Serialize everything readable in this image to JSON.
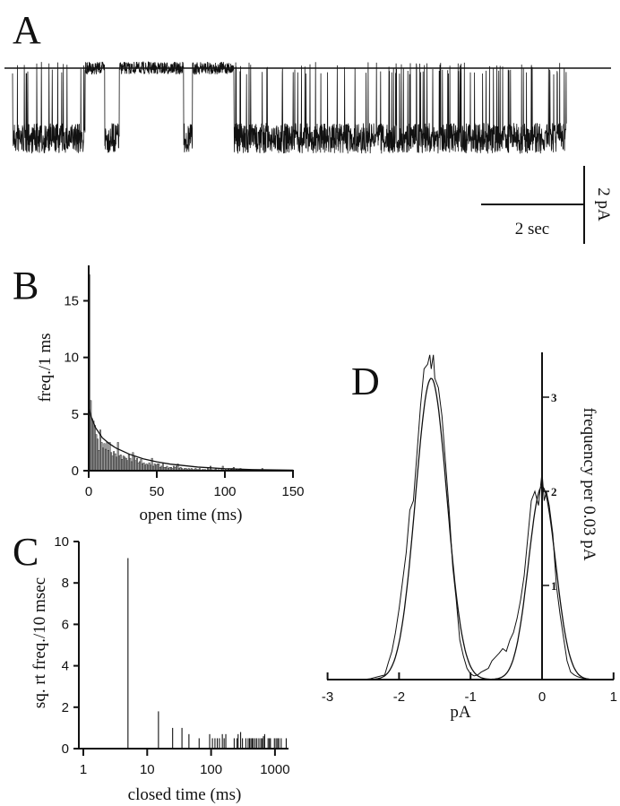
{
  "panels": {
    "a": "A",
    "b": "B",
    "c": "C",
    "d": "D"
  },
  "colors": {
    "ink": "#111111",
    "bar_fill": "#9a9a9a"
  },
  "chart_data": [
    {
      "id": "A",
      "type": "line",
      "description_kind": "single-channel current trace",
      "scale_bar": {
        "time_label": "2 sec",
        "current_label": "2 pA",
        "time_s": 2,
        "current_pA": 2
      },
      "closed_level_pA": 0,
      "open_level_pA": -1.8,
      "duration_s": 10.75,
      "long_closed_intervals_s": [
        [
          1.41,
          1.79
        ],
        [
          2.07,
          3.32
        ],
        [
          3.49,
          4.3
        ]
      ],
      "brief_open_intervals_s": [
        [
          1.79,
          2.07
        ],
        [
          3.32,
          3.49
        ]
      ]
    },
    {
      "id": "B",
      "type": "bar",
      "xlabel": "open time (ms)",
      "ylabel": "freq./1 ms",
      "xlim": [
        0,
        150
      ],
      "ylim": [
        0,
        17.5
      ],
      "xticks": [
        "0",
        "50",
        "100",
        "150"
      ],
      "yticks": [
        "0",
        "5",
        "10",
        "15"
      ],
      "bin_width_ms": 1,
      "values": [
        17.3,
        6.2,
        4.6,
        4.4,
        4.0,
        3.2,
        2.8,
        1.8,
        3.6,
        2.5,
        2.0,
        2.4,
        1.9,
        2.5,
        1.8,
        2.5,
        1.6,
        1.3,
        1.7,
        1.5,
        1.2,
        2.5,
        1.3,
        1.4,
        1.0,
        1.3,
        1.2,
        1.1,
        0.9,
        1.4,
        1.1,
        0.8,
        1.6,
        1.3,
        0.9,
        1.1,
        0.7,
        0.8,
        1.0,
        0.6,
        0.7,
        0.5,
        0.6,
        0.5,
        0.7,
        0.5,
        1.1,
        0.4,
        0.6,
        0.5,
        0.6,
        0.6,
        0.3,
        0.4,
        0.6,
        0.3,
        0.3,
        0.4,
        0.2,
        0.3,
        0.3,
        0.2,
        0.4,
        0.3,
        0.4,
        0.6,
        0.2,
        0.3,
        0.2,
        0.1,
        0.2,
        0.2,
        0.1,
        0.2,
        0.1,
        0.2,
        0.1,
        0.1,
        0.2,
        0.1,
        0.1,
        0.2,
        0,
        0.1,
        0.1,
        0.1,
        0,
        0.2,
        0.1,
        0.4,
        0.1,
        0,
        0.1,
        0.2,
        0,
        0.1,
        0,
        0.1,
        0.4,
        0,
        0.1,
        0,
        0.1,
        0,
        0.1,
        0.2,
        0.3,
        0,
        0.1,
        0,
        0.1,
        0.2,
        0,
        0,
        0.1,
        0,
        0,
        0,
        0,
        0,
        0,
        0,
        0.1,
        0,
        0,
        0,
        0,
        0.2,
        0,
        0
      ],
      "fit": {
        "x": [
          0,
          2,
          5,
          10,
          15,
          20,
          30,
          40,
          50,
          60,
          80,
          100,
          120,
          150
        ],
        "y": [
          5.6,
          4.7,
          3.8,
          2.9,
          2.4,
          2.0,
          1.45,
          1.05,
          0.78,
          0.58,
          0.32,
          0.18,
          0.1,
          0.05
        ]
      }
    },
    {
      "id": "C",
      "type": "bar",
      "xscale": "log",
      "xlabel": "closed time (ms)",
      "ylabel": "sq. rt freq./10 msec",
      "xlim": [
        1,
        1600
      ],
      "ylim": [
        0,
        10
      ],
      "xticks": [
        "1",
        "10",
        "100",
        "1000"
      ],
      "yticks": [
        "0",
        "2",
        "4",
        "6",
        "8",
        "10"
      ],
      "x": [
        5,
        15,
        25,
        35,
        45,
        65,
        95,
        105,
        115,
        125,
        135,
        150,
        160,
        170,
        230,
        255,
        265,
        290,
        310,
        350,
        380,
        400,
        420,
        440,
        460,
        490,
        520,
        560,
        600,
        630,
        660,
        690,
        780,
        820,
        850,
        980,
        1040,
        1100,
        1150,
        1250,
        1500
      ],
      "values": [
        9.2,
        1.8,
        1.0,
        1.0,
        0.7,
        0.5,
        0.7,
        0.5,
        0.5,
        0.5,
        0.5,
        0.7,
        0.5,
        0.7,
        0.5,
        0.5,
        0.7,
        0.8,
        0.5,
        0.5,
        0.5,
        0.5,
        0.5,
        0.5,
        0.5,
        0.5,
        0.5,
        0.5,
        0.5,
        0.5,
        0.6,
        0.7,
        0.5,
        0.5,
        0.5,
        0.5,
        0.5,
        0.5,
        0.5,
        0.5,
        0.5
      ]
    },
    {
      "id": "D",
      "type": "line",
      "xlabel": "pA",
      "ylabel": "frequency per 0.03 pA",
      "xlim": [
        -3,
        1
      ],
      "ylim": [
        0,
        3.5
      ],
      "xticks": [
        "-3",
        "-2",
        "-1",
        "0",
        "1"
      ],
      "yticks": [
        "1",
        "2",
        "3"
      ],
      "histogram": {
        "x": [
          -2.5,
          -2.4,
          -2.3,
          -2.2,
          -2.15,
          -2.1,
          -2.05,
          -2.0,
          -1.95,
          -1.9,
          -1.85,
          -1.8,
          -1.75,
          -1.7,
          -1.65,
          -1.6,
          -1.57,
          -1.55,
          -1.52,
          -1.5,
          -1.45,
          -1.4,
          -1.35,
          -1.3,
          -1.25,
          -1.2,
          -1.15,
          -1.1,
          -1.05,
          -1.0,
          -0.95,
          -0.9,
          -0.85,
          -0.8,
          -0.75,
          -0.7,
          -0.65,
          -0.6,
          -0.55,
          -0.5,
          -0.45,
          -0.4,
          -0.35,
          -0.3,
          -0.25,
          -0.2,
          -0.15,
          -0.1,
          -0.05,
          0,
          0.03,
          0.06,
          0.1,
          0.15,
          0.2,
          0.25,
          0.3,
          0.35,
          0.4,
          0.45,
          0.5,
          0.6,
          0.7
        ],
        "y": [
          0,
          0.01,
          0.03,
          0.05,
          0.18,
          0.3,
          0.5,
          0.75,
          1.05,
          1.35,
          1.8,
          1.9,
          2.4,
          2.9,
          3.3,
          3.35,
          3.45,
          3.3,
          3.45,
          3.2,
          3.1,
          2.8,
          2.3,
          1.8,
          1.2,
          0.85,
          0.42,
          0.25,
          0.12,
          0.06,
          0.04,
          0.05,
          0.08,
          0.1,
          0.12,
          0.2,
          0.24,
          0.28,
          0.33,
          0.3,
          0.42,
          0.5,
          0.65,
          0.85,
          1.1,
          1.5,
          1.9,
          2.0,
          1.85,
          2.2,
          1.9,
          2.0,
          1.85,
          1.55,
          1.0,
          0.7,
          0.45,
          0.2,
          0.08,
          0.05,
          0.03,
          0.01,
          0
        ]
      },
      "fit_gaussians": [
        {
          "mean": -1.55,
          "sd": 0.22,
          "peak": 3.2
        },
        {
          "mean": 0.0,
          "sd": 0.19,
          "peak": 2.05
        }
      ]
    }
  ]
}
